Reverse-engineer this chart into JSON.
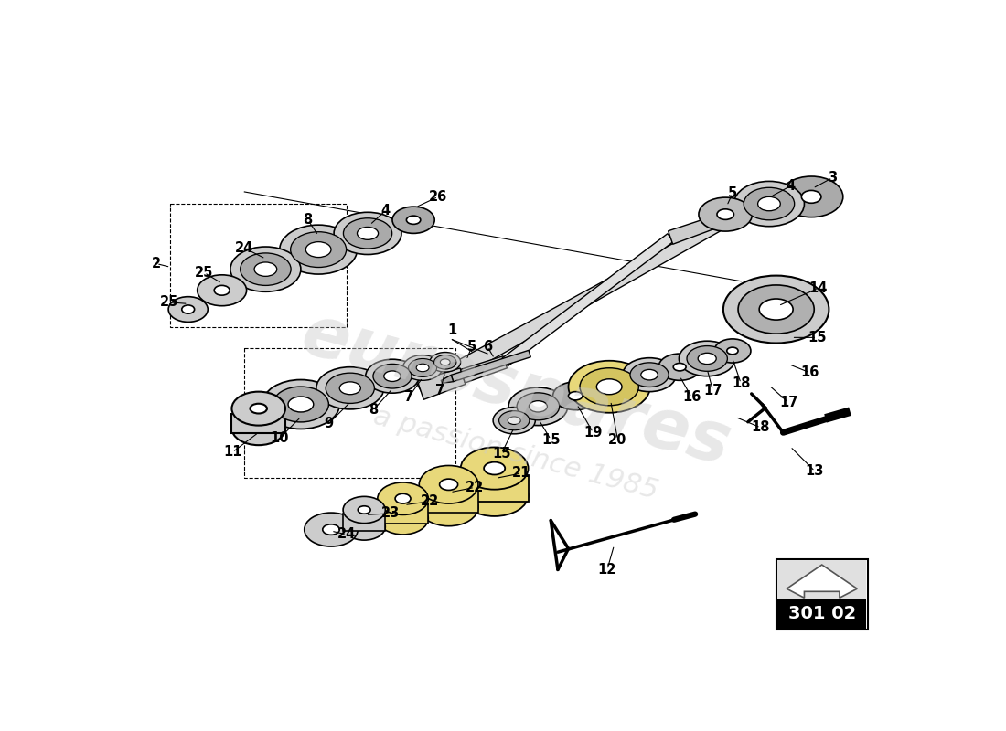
{
  "background_color": "#ffffff",
  "diagram_code": "301 02",
  "watermark_text": "eurospares",
  "watermark_sub": "a passion since 1985",
  "line_color": "#000000",
  "shaft_color": "#cccccc",
  "ring_gray": "#d0d0d0",
  "ring_dark": "#888888",
  "ring_yellow": "#e8d87a",
  "ring_white": "#ffffff"
}
